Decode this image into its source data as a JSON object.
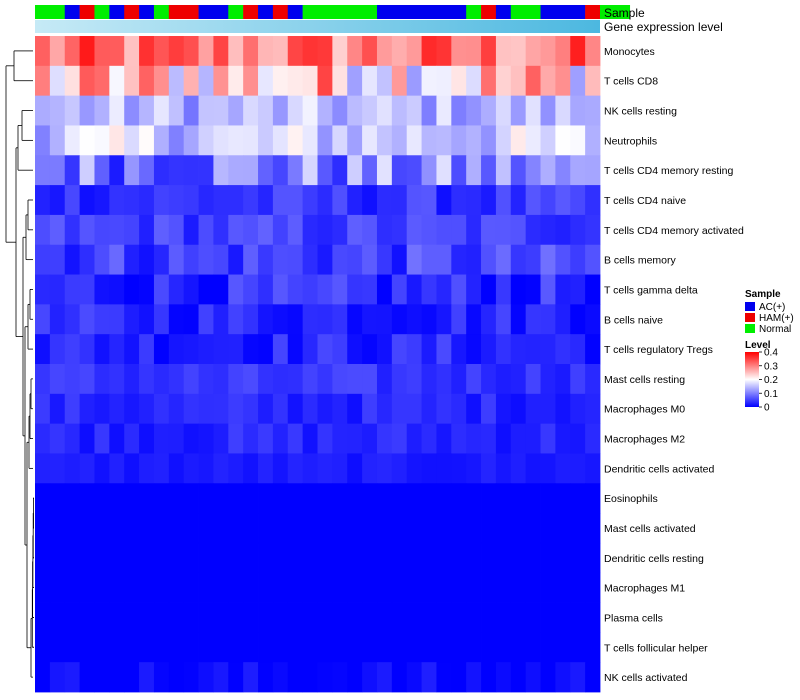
{
  "chart_data": {
    "type": "heatmap",
    "title": "",
    "annotation_rows": [
      "Sample",
      "Gene expression level"
    ],
    "sample_groups": [
      "Normal",
      "AC(+)",
      "HAM(+)",
      "Normal",
      "AC(+)",
      "HAM(+)",
      "AC(+)",
      "Normal",
      "HAM(+)",
      "AC(+)",
      "Normal",
      "HAM(+)",
      "AC(+)",
      "HAM(+)",
      "AC(+)",
      "Normal",
      "AC(+)",
      "Normal",
      "HAM(+)",
      "AC(+)",
      "Normal",
      "AC(+)",
      "HAM(+)",
      "Normal"
    ],
    "sample_group_runs": [
      2,
      1,
      1,
      1,
      1,
      1,
      1,
      1,
      2,
      2,
      1,
      1,
      1,
      1,
      1,
      5,
      6,
      1,
      1,
      1,
      2,
      3,
      1,
      2
    ],
    "columns": 38,
    "expression_level_gradient": [
      "#c6eaf6",
      "#4cb8e0"
    ],
    "rows": [
      "Monocytes",
      "T cells CD8",
      "NK cells resting",
      "Neutrophils",
      "T cells CD4 memory resting",
      "T cells CD4 naive",
      "T cells CD4 memory activated",
      "B cells memory",
      "T cells gamma delta",
      "B cells naive",
      "T cells regulatory  Tregs",
      "Mast cells resting",
      "Macrophages M0",
      "Macrophages M2",
      "Dendritic cells activated",
      "Eosinophils",
      "Mast cells activated",
      "Dendritic cells resting",
      "Macrophages M1",
      "Plasma cells",
      "T cells follicular helper",
      "NK cells activated"
    ],
    "row_means": [
      0.3,
      0.24,
      0.14,
      0.16,
      0.1,
      0.04,
      0.05,
      0.05,
      0.03,
      0.03,
      0.03,
      0.04,
      0.03,
      0.03,
      0.02,
      0.0,
      0.0,
      0.0,
      0.0,
      0.0,
      0.0,
      0.005
    ],
    "row_spread": [
      0.08,
      0.12,
      0.05,
      0.06,
      0.08,
      0.03,
      0.03,
      0.04,
      0.04,
      0.03,
      0.03,
      0.02,
      0.02,
      0.02,
      0.01,
      0.0,
      0.0,
      0.0,
      0.0,
      0.0,
      0.0,
      0.02
    ],
    "legend": {
      "sample_title": "Sample",
      "sample_entries": [
        {
          "label": "AC(+)",
          "color": "#0000ee"
        },
        {
          "label": "HAM(+)",
          "color": "#ee0000"
        },
        {
          "label": "Normal",
          "color": "#00ee00"
        }
      ],
      "level_title": "Level",
      "level_ticks": [
        "0.4",
        "0.3",
        "0.2",
        "0.1",
        "0"
      ],
      "level_values": [
        0.4,
        0.3,
        0.2,
        0.1,
        0
      ],
      "scale_min": 0,
      "scale_max": 0.4,
      "gradient": [
        "#0000ff",
        "#ffffff",
        "#ff0000"
      ]
    }
  }
}
